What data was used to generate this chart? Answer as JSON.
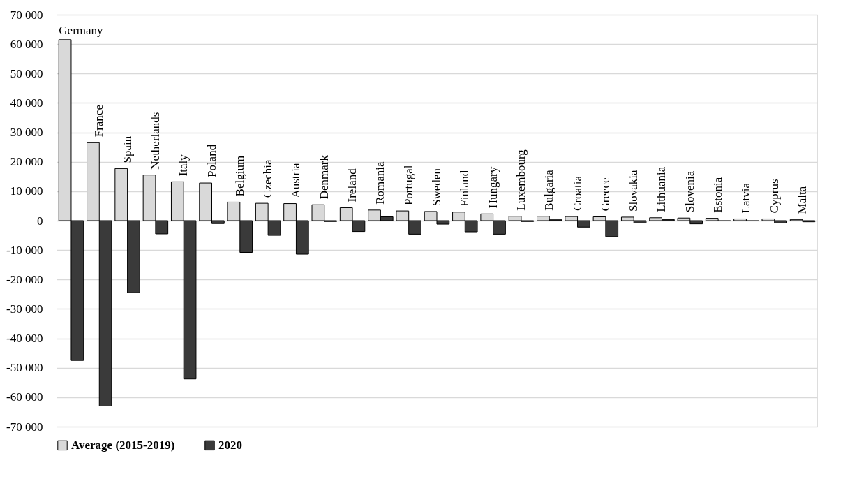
{
  "chart_data": {
    "type": "bar",
    "categories": [
      "Germany",
      "France",
      "Spain",
      "Netherlands",
      "Italy",
      "Poland",
      "Belgium",
      "Czechia",
      "Austria",
      "Denmark",
      "Ireland",
      "Romania",
      "Portugal",
      "Sweden",
      "Finland",
      "Hungary",
      "Luxembourg",
      "Bulgaria",
      "Croatia",
      "Greece",
      "Slovakia",
      "Lithuania",
      "Slovenia",
      "Estonia",
      "Latvia",
      "Cyprus",
      "Malta"
    ],
    "series": [
      {
        "name": "Average (2015-2019)",
        "color": "#d9d9d9",
        "values": [
          61500,
          26500,
          17700,
          15500,
          13200,
          12800,
          6300,
          5900,
          5800,
          5400,
          4400,
          3600,
          3300,
          3100,
          2900,
          2300,
          1500,
          1500,
          1400,
          1300,
          1200,
          1000,
          900,
          800,
          600,
          600,
          400
        ]
      },
      {
        "name": "2020",
        "color": "#3a3a3a",
        "values": [
          -47500,
          -63000,
          -24500,
          -4500,
          -53800,
          -1000,
          -10800,
          -5000,
          -11400,
          -300,
          -3700,
          1300,
          -4600,
          -1200,
          -3800,
          -4600,
          -300,
          300,
          -2200,
          -5400,
          -800,
          400,
          -1100,
          -100,
          -100,
          -800,
          -400
        ]
      }
    ],
    "ylim": [
      -70000,
      70000
    ],
    "yticks": [
      {
        "value": -70000,
        "label": "-70 000"
      },
      {
        "value": -60000,
        "label": "-60 000"
      },
      {
        "value": -50000,
        "label": "-50 000"
      },
      {
        "value": -40000,
        "label": "-40 000"
      },
      {
        "value": -30000,
        "label": "-30 000"
      },
      {
        "value": -20000,
        "label": "-20 000"
      },
      {
        "value": -10000,
        "label": "-10 000"
      },
      {
        "value": 0,
        "label": "0"
      },
      {
        "value": 10000,
        "label": "10 000"
      },
      {
        "value": 20000,
        "label": "20 000"
      },
      {
        "value": 30000,
        "label": "30 000"
      },
      {
        "value": 40000,
        "label": "40 000"
      },
      {
        "value": 50000,
        "label": "50 000"
      },
      {
        "value": 60000,
        "label": "60 000"
      },
      {
        "value": 70000,
        "label": "70 000"
      }
    ],
    "grid": "y",
    "legend": "bottom"
  }
}
